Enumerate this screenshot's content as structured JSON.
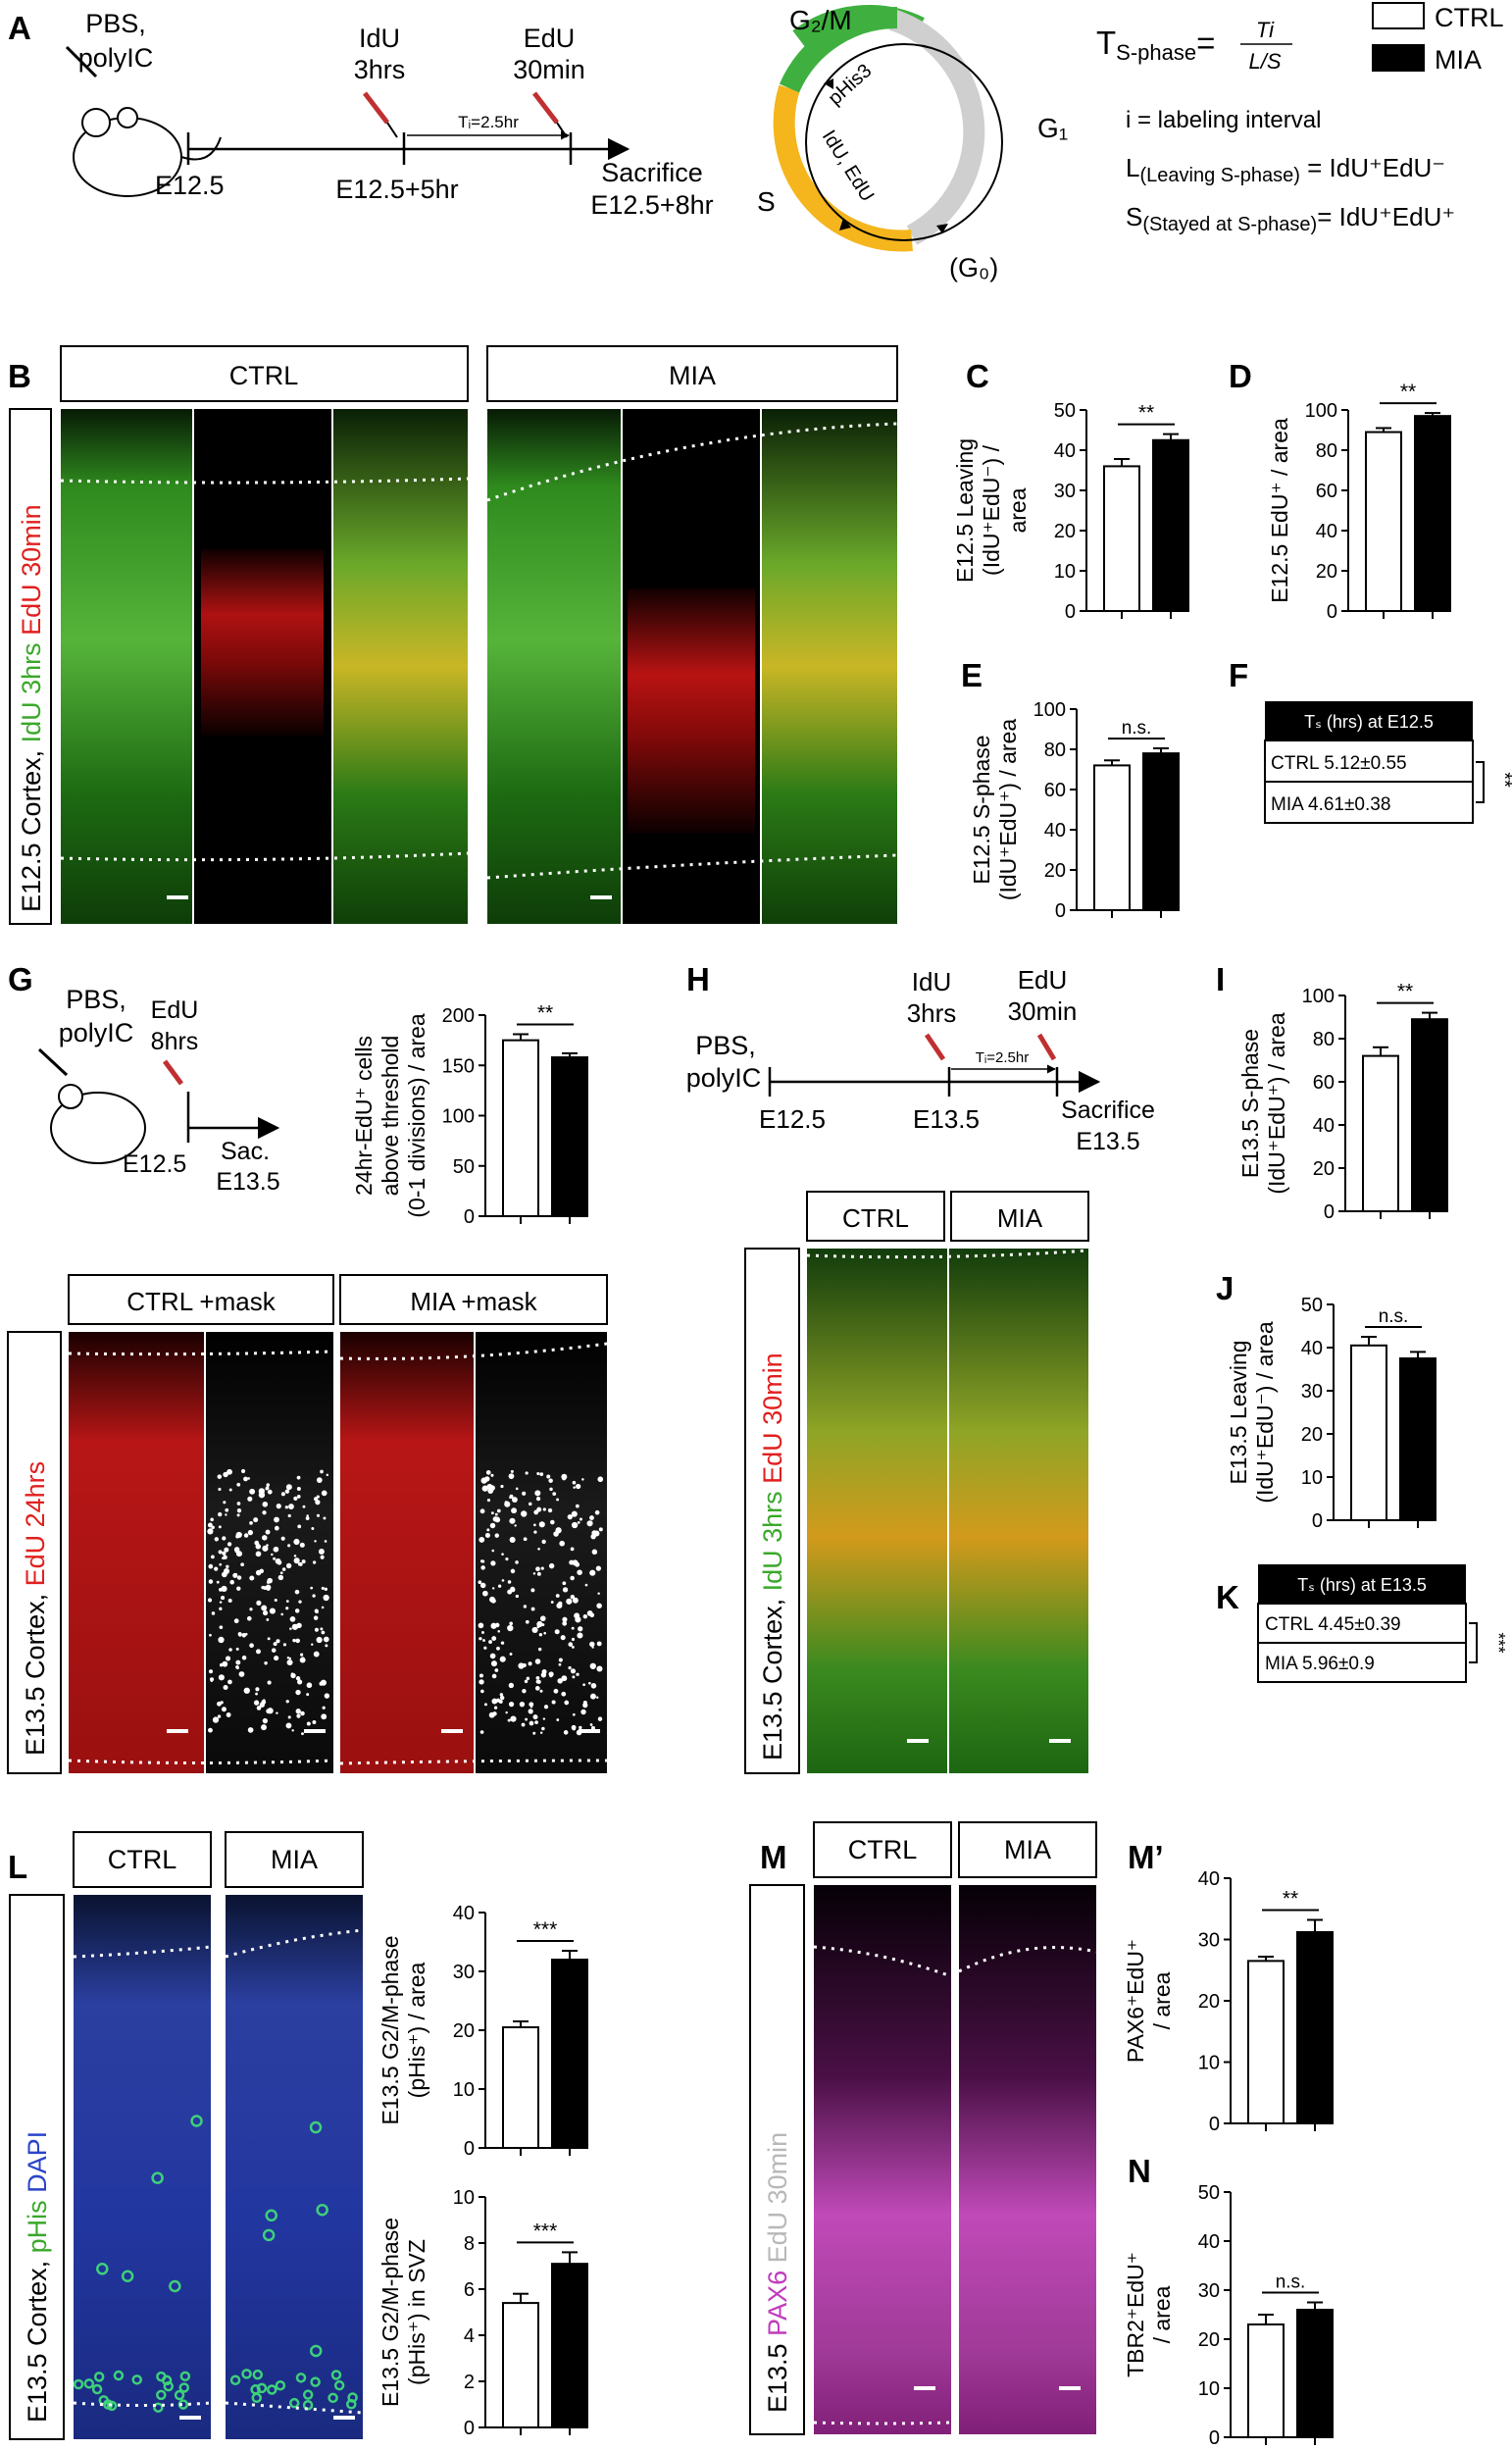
{
  "panel_letters": {
    "A": "A",
    "B": "B",
    "C": "C",
    "D": "D",
    "E": "E",
    "F": "F",
    "G": "G",
    "H": "H",
    "I": "I",
    "J": "J",
    "K": "K",
    "L": "L",
    "M": "M",
    "Mp": "M’",
    "N": "N"
  },
  "legend": {
    "ctrl": "CTRL",
    "mia": "MIA",
    "ctrl_color": "#ffffff",
    "mia_color": "#000000"
  },
  "panelA": {
    "inject1": "PBS,",
    "inject2": "polyIC",
    "idu1": "IdU",
    "idu2": "3hrs",
    "edu1": "EdU",
    "edu2": "30min",
    "interval": "Tᵢ=2.5hr",
    "e125": "E12.5",
    "e125p5": "E12.5+5hr",
    "sac1": "Sacrifice",
    "sac2": "E12.5+8hr",
    "cycle": {
      "g2m": "G₂/M",
      "g1": "G₁",
      "s": "S",
      "g0": "(G₀)",
      "phis": "pHis3",
      "idu_edu": "IdU, EdU"
    },
    "formula": {
      "tlhs": "T",
      "tsub": "S-phase",
      "eq": "=",
      "num": "Ti",
      "den": "L/S",
      "line1": "i = labeling interval",
      "line2a": "L",
      "line2sub": "(Leaving S-phase)",
      "line2b": " = IdU⁺EdU⁻",
      "line3a": "S",
      "line3sub": "(Stayed at S-phase)",
      "line3b": "= IdU⁺EdU⁺"
    }
  },
  "panelB": {
    "ctrl": "CTRL",
    "mia": "MIA",
    "side1": "E12.5 Cortex, ",
    "side2": "IdU 3hrs ",
    "side3": "EdU 30min"
  },
  "panelF": {
    "header": "Tₛ (hrs)  at E12.5",
    "row1": "CTRL 5.12±0.55",
    "row2": "MIA 4.61±0.38",
    "sig": "**"
  },
  "panelG": {
    "inj1": "PBS,",
    "inj2": "polyIC",
    "edu1": "EdU",
    "edu2": "8hrs",
    "e125": "E12.5",
    "sac1": "Sac.",
    "sac2": "E13.5",
    "img_ctrl": "CTRL +mask",
    "img_mia": "MIA +mask",
    "side1": "E13.5 Cortex, ",
    "side2": "EdU 24hrs"
  },
  "panelH": {
    "inj1": "PBS,",
    "inj2": "polyIC",
    "idu1": "IdU",
    "idu2": "3hrs",
    "edu1": "EdU",
    "edu2": "30min",
    "interval": "Tᵢ=2.5hr",
    "e125": "E12.5",
    "e135": "E13.5",
    "sac1": "Sacrifice",
    "sac2": "E13.5",
    "img_ctrl": "CTRL",
    "img_mia": "MIA",
    "side1": "E13.5 Cortex, ",
    "side2": "IdU 3hrs ",
    "side3": "EdU 30min"
  },
  "panelK": {
    "header": "Tₛ (hrs)  at E13.5",
    "row1": "CTRL 4.45±0.39",
    "row2": "MIA 5.96±0.9",
    "sig": "***"
  },
  "panelL": {
    "ctrl": "CTRL",
    "mia": "MIA",
    "side1": "E13.5 Cortex, ",
    "side2": "pHis ",
    "side3": "DAPI"
  },
  "panelM": {
    "ctrl": "CTRL",
    "mia": "MIA",
    "side1": "E13.5 ",
    "side2": "PAX6 ",
    "side3": "EdU 30min"
  },
  "chart_data": [
    {
      "id": "C",
      "type": "bar",
      "categories": [
        "CTRL",
        "MIA"
      ],
      "values": [
        36,
        42.5
      ],
      "errors": [
        1.8,
        1.5
      ],
      "ylim": [
        0,
        50
      ],
      "yticks": [
        0,
        10,
        20,
        30,
        40,
        50
      ],
      "ylabel": [
        "E12.5 Leaving",
        "(IdU⁺EdU⁻) /",
        "area"
      ],
      "sig": "**"
    },
    {
      "id": "D",
      "type": "bar",
      "categories": [
        "CTRL",
        "MIA"
      ],
      "values": [
        89,
        97
      ],
      "errors": [
        2,
        1.5
      ],
      "ylim": [
        0,
        100
      ],
      "yticks": [
        0,
        20,
        40,
        60,
        80,
        100
      ],
      "ylabel": [
        "E12.5 EdU⁺ / area"
      ],
      "sig": "**"
    },
    {
      "id": "E",
      "type": "bar",
      "categories": [
        "CTRL",
        "MIA"
      ],
      "values": [
        72,
        78
      ],
      "errors": [
        2.5,
        2.5
      ],
      "ylim": [
        0,
        100
      ],
      "yticks": [
        0,
        20,
        40,
        60,
        80,
        100
      ],
      "ylabel": [
        "E12.5 S-phase",
        "(IdU⁺EdU⁺) / area"
      ],
      "sig": "n.s."
    },
    {
      "id": "G",
      "type": "bar",
      "categories": [
        "CTRL",
        "MIA"
      ],
      "values": [
        175,
        158
      ],
      "errors": [
        6,
        4
      ],
      "ylim": [
        0,
        200
      ],
      "yticks": [
        0,
        50,
        100,
        150,
        200
      ],
      "ylabel": [
        "24hr-EdU⁺ cells",
        "above threshold",
        "(0-1 divisions)  / area"
      ],
      "sig": "**"
    },
    {
      "id": "I",
      "type": "bar",
      "categories": [
        "CTRL",
        "MIA"
      ],
      "values": [
        72,
        89
      ],
      "errors": [
        4,
        3
      ],
      "ylim": [
        0,
        100
      ],
      "yticks": [
        0,
        20,
        40,
        60,
        80,
        100
      ],
      "ylabel": [
        "E13.5 S-phase",
        "(IdU⁺EdU⁺) / area"
      ],
      "sig": "**"
    },
    {
      "id": "J",
      "type": "bar",
      "categories": [
        "CTRL",
        "MIA"
      ],
      "values": [
        40.5,
        37.5
      ],
      "errors": [
        2,
        1.5
      ],
      "ylim": [
        0,
        50
      ],
      "yticks": [
        0,
        10,
        20,
        30,
        40,
        50
      ],
      "ylabel": [
        "E13.5 Leaving",
        "(IdU⁺EdU⁻) / area"
      ],
      "sig": "n.s."
    },
    {
      "id": "L1",
      "type": "bar",
      "categories": [
        "CTRL",
        "MIA"
      ],
      "values": [
        20.5,
        32
      ],
      "errors": [
        1,
        1.5
      ],
      "ylim": [
        0,
        40
      ],
      "yticks": [
        0,
        10,
        20,
        30,
        40
      ],
      "ylabel": [
        "E13.5 G2/M-phase",
        "(pHis⁺) / area"
      ],
      "sig": "***"
    },
    {
      "id": "L2",
      "type": "bar",
      "categories": [
        "CTRL",
        "MIA"
      ],
      "values": [
        5.4,
        7.1
      ],
      "errors": [
        0.4,
        0.5
      ],
      "ylim": [
        0,
        10
      ],
      "yticks": [
        0,
        2,
        4,
        6,
        8,
        10
      ],
      "ylabel": [
        "E13.5 G2/M-phase",
        "(pHis⁺) in SVZ"
      ],
      "sig": "***"
    },
    {
      "id": "Mp",
      "type": "bar",
      "categories": [
        "CTRL",
        "MIA"
      ],
      "values": [
        26.5,
        31.2
      ],
      "errors": [
        0.7,
        2
      ],
      "ylim": [
        0,
        40
      ],
      "yticks": [
        0,
        10,
        20,
        30,
        40
      ],
      "ylabel": [
        "PAX6⁺EdU⁺",
        "/ area"
      ],
      "sig": "**"
    },
    {
      "id": "N",
      "type": "bar",
      "categories": [
        "CTRL",
        "MIA"
      ],
      "values": [
        23,
        26
      ],
      "errors": [
        2,
        1.5
      ],
      "ylim": [
        0,
        50
      ],
      "yticks": [
        0,
        10,
        20,
        30,
        40,
        50
      ],
      "ylabel": [
        "TBR2⁺EdU⁺",
        "/ area"
      ],
      "sig": "n.s."
    }
  ]
}
